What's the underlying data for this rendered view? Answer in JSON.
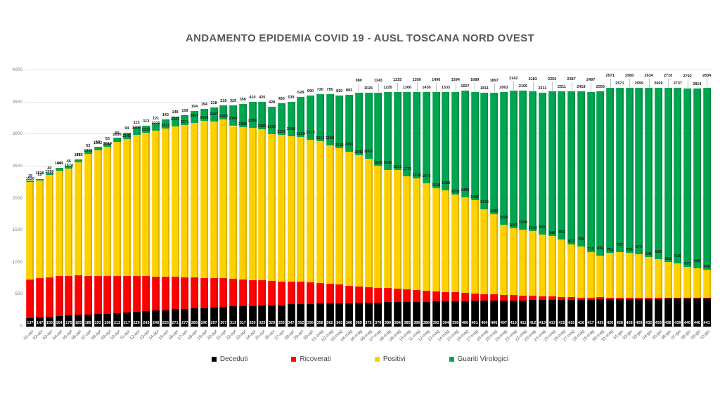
{
  "title": "ANDAMENTO EPIDEMIA COVID 19 - AUSL TOSCANA NORD OVEST",
  "chart_data": {
    "type": "bar",
    "stacked": true,
    "grid": true,
    "legend_position": "bottom",
    "ylim": [
      0,
      4000
    ],
    "yticks": [
      0,
      500,
      1000,
      1500,
      2000,
      2500,
      3000,
      3500,
      4000
    ],
    "categories": [
      "01-apr",
      "02-apr",
      "03-apr",
      "04-apr",
      "05-apr",
      "06-apr",
      "07-apr",
      "08-apr",
      "09-apr",
      "10-apr",
      "11-apr",
      "12-apr",
      "13-apr",
      "14-apr",
      "15-apr",
      "16-apr",
      "17-apr",
      "18-apr",
      "19-apr",
      "20-apr",
      "21-apr",
      "22-apr",
      "23-apr",
      "24-apr",
      "25-apr",
      "26-apr",
      "27-apr",
      "28-apr",
      "29-apr",
      "30-apr",
      "01-mag",
      "02-mag",
      "03-mag",
      "04-mag",
      "05-mag",
      "06-mag",
      "07-mag",
      "08-mag",
      "09-mag",
      "10-mag",
      "11-mag",
      "12-mag",
      "13-mag",
      "14-mag",
      "15-mag",
      "16-mag",
      "17-mag",
      "18-mag",
      "19-mag",
      "20-mag",
      "21-mag",
      "22-mag",
      "23-mag",
      "24-mag",
      "25-mag",
      "26-mag",
      "27-mag",
      "28-mag",
      "29-mag",
      "30-mag",
      "31-mag",
      "01-giu",
      "02-giu",
      "03-giu",
      "04-giu",
      "05-giu",
      "06-giu",
      "07-giu",
      "08-giu",
      "09-giu",
      "10-giu"
    ],
    "series": [
      {
        "name": "Deceduti",
        "color": "#000000",
        "labels_shown": true,
        "values": [
          137,
          147,
          155,
          164,
          175,
          183,
          188,
          193,
          198,
          212,
          217,
          229,
          243,
          249,
          255,
          271,
          277,
          285,
          290,
          297,
          307,
          313,
          317,
          320,
          325,
          329,
          333,
          347,
          352,
          356,
          358,
          362,
          363,
          366,
          369,
          372,
          376,
          380,
          384,
          385,
          386,
          388,
          392,
          394,
          398,
          400,
          401,
          404,
          406,
          407,
          410,
          411,
          412,
          413,
          413,
          415,
          415,
          416,
          417,
          425,
          426,
          428,
          428,
          429,
          432,
          433,
          438,
          439,
          440,
          440,
          441
        ]
      },
      {
        "name": "Ricoverati",
        "color": "#ff0000",
        "labels_shown": false,
        "values": [
          600,
          610,
          615,
          620,
          618,
          612,
          605,
          598,
          590,
          580,
          570,
          558,
          545,
          532,
          520,
          508,
          495,
          482,
          470,
          458,
          445,
          432,
          420,
          408,
          395,
          382,
          370,
          357,
          345,
          332,
          320,
          305,
          290,
          275,
          260,
          246,
          232,
          218,
          205,
          192,
          180,
          168,
          156,
          145,
          134,
          124,
          114,
          105,
          96,
          88,
          80,
          73,
          66,
          60,
          54,
          48,
          43,
          38,
          34,
          30,
          26,
          23,
          20,
          18,
          16,
          14,
          12,
          11,
          10,
          9,
          8
        ]
      },
      {
        "name": "Positivi",
        "color": "#ffd100",
        "labels_shown": true,
        "values": [
          1520,
          1518,
          1595,
          1649,
          1674,
          1765,
          1905,
          1962,
          2019,
          2095,
          2141,
          2208,
          2234,
          2276,
          2312,
          2347,
          2371,
          2407,
          2448,
          2447,
          2483,
          2384,
          2380,
          2369,
          2365,
          2292,
          2293,
          2268,
          2259,
          2229,
          2217,
          2166,
          2135,
          2091,
          2042,
          2005,
          1903,
          1842,
          1851,
          1773,
          1746,
          1675,
          1616,
          1588,
          1532,
          1498,
          1460,
          1326,
          1253,
          1098,
          1047,
          1029,
          1014,
          965,
          946,
          901,
          827,
          796,
          715,
          656,
          701,
          707,
          700,
          679,
          641,
          605,
          562,
          536,
          477,
          456,
          440
        ]
      },
      {
        "name": "Guariti Virologici",
        "color": "#00a550",
        "labels_shown": true,
        "values": [
          19,
          25,
          40,
          40,
          46,
          48,
          53,
          53,
          53,
          60,
          94,
          113,
          113,
          121,
          143,
          148,
          158,
          194,
          194,
          218,
          218,
          325,
          358,
          410,
          420,
          428,
          493,
          539,
          628,
          690,
          730,
          795,
          820,
          883,
          980,
          1026,
          1143,
          1225,
          1225,
          1306,
          1350,
          1430,
          1496,
          1533,
          1594,
          1657,
          1689,
          1811,
          1897,
          2063,
          2142,
          2166,
          2183,
          2211,
          2256,
          2311,
          2387,
          2418,
          2497,
          2556,
          2571,
          2571,
          2580,
          2599,
          2634,
          2669,
          2710,
          2737,
          2792,
          2814,
          2834
        ]
      }
    ]
  }
}
